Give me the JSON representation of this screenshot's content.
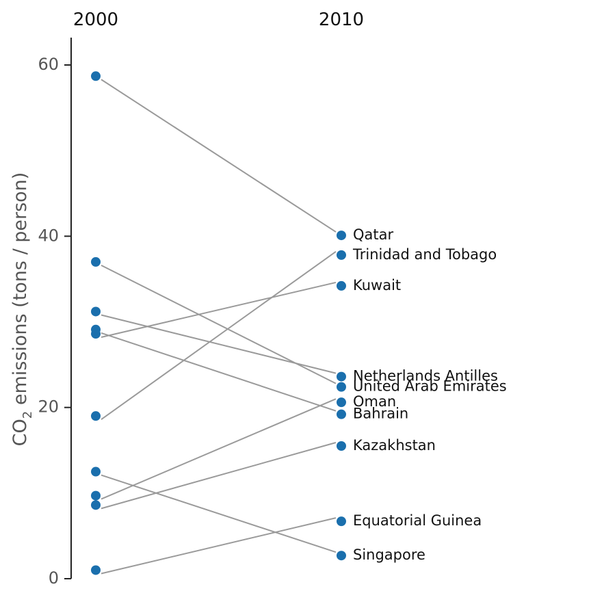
{
  "chart_data": {
    "type": "line",
    "subtype": "slopegraph",
    "x": [
      "2000",
      "2010"
    ],
    "ylabel_prefix": "CO",
    "ylabel_subscript": "2",
    "ylabel_suffix": " emissions (tons / person)",
    "ylim": [
      0,
      63
    ],
    "yticks": [
      0,
      20,
      40,
      60
    ],
    "grid": false,
    "point_color": "#1a6fad",
    "line_color": "#9a9a9a",
    "series": [
      {
        "name": "Qatar",
        "values": [
          58.7,
          40.1
        ]
      },
      {
        "name": "Trinidad and Tobago",
        "values": [
          19.0,
          37.8
        ]
      },
      {
        "name": "Kuwait",
        "values": [
          28.6,
          34.2
        ]
      },
      {
        "name": "Netherlands Antilles",
        "values": [
          31.2,
          23.6
        ]
      },
      {
        "name": "United Arab Emirates",
        "values": [
          37.0,
          22.4
        ]
      },
      {
        "name": "Oman",
        "values": [
          9.7,
          20.6
        ]
      },
      {
        "name": "Bahrain",
        "values": [
          29.1,
          19.2
        ]
      },
      {
        "name": "Kazakhstan",
        "values": [
          8.6,
          15.5
        ]
      },
      {
        "name": "Equatorial Guinea",
        "values": [
          1.0,
          6.7
        ]
      },
      {
        "name": "Singapore",
        "values": [
          12.5,
          2.7
        ]
      }
    ]
  }
}
